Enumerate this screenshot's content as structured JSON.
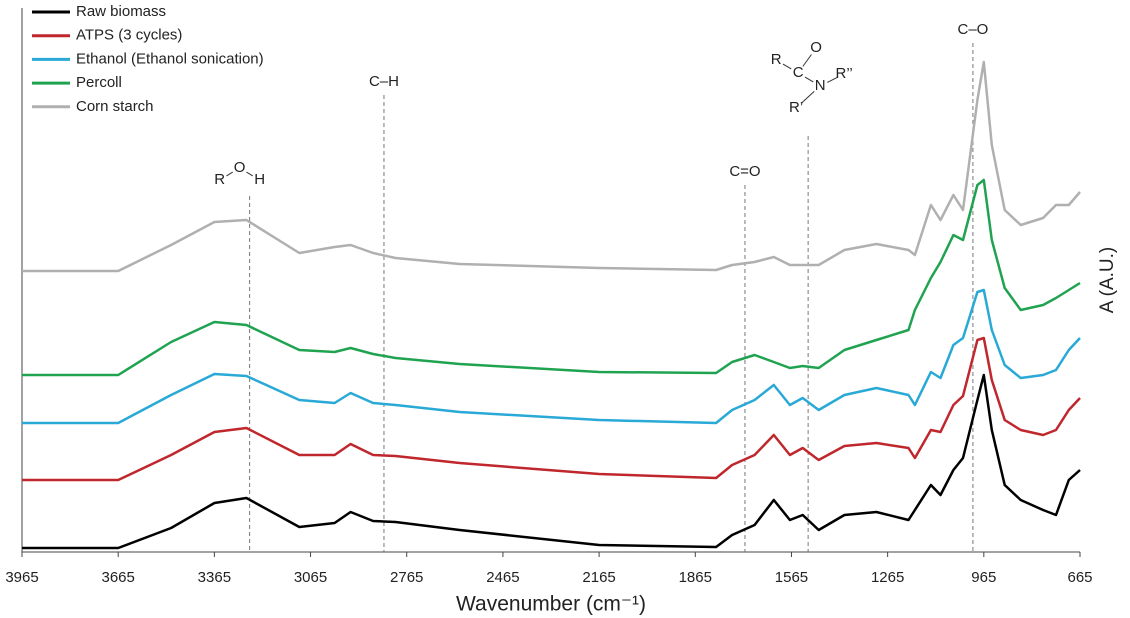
{
  "chart_data": {
    "type": "line",
    "x_label": "Wavenumber (cm⁻¹)",
    "y_label": "A (A.U.)",
    "xlim": [
      3965,
      665
    ],
    "ylim": [
      0,
      544
    ],
    "xticks": [
      3965,
      3665,
      3365,
      3065,
      2765,
      2465,
      2165,
      1865,
      1565,
      1265,
      965,
      665
    ],
    "legend": "upper left",
    "x": [
      3965,
      3665,
      3500,
      3365,
      3265,
      3100,
      2990,
      2940,
      2870,
      2800,
      2600,
      2165,
      1800,
      1750,
      1680,
      1620,
      1570,
      1530,
      1480,
      1400,
      1300,
      1200,
      1180,
      1130,
      1100,
      1060,
      1030,
      985,
      965,
      940,
      900,
      850,
      780,
      740,
      700,
      665
    ],
    "series": [
      {
        "name": "Raw biomass",
        "color": "#000000",
        "values": [
          4,
          4,
          24,
          49,
          54,
          25,
          29,
          40,
          31,
          30,
          22,
          7,
          5,
          17,
          27,
          52,
          32,
          37,
          22,
          37,
          40,
          32,
          42,
          67,
          57,
          82,
          94,
          152,
          177,
          122,
          67,
          52,
          42,
          37,
          72,
          82
        ]
      },
      {
        "name": "ATPS (3 cycles)",
        "color": "#c0272d",
        "values": [
          72,
          72,
          97,
          120,
          124,
          97,
          97,
          108,
          97,
          96,
          89,
          78,
          74,
          87,
          97,
          117,
          97,
          104,
          92,
          106,
          109,
          104,
          94,
          122,
          120,
          147,
          156,
          212,
          214,
          172,
          132,
          122,
          117,
          122,
          142,
          154
        ]
      },
      {
        "name": "Ethanol (Ethanol sonication)",
        "color": "#29a9d6",
        "values": [
          129,
          129,
          157,
          178,
          176,
          152,
          149,
          159,
          149,
          147,
          140,
          132,
          129,
          142,
          152,
          167,
          147,
          154,
          142,
          157,
          164,
          157,
          147,
          180,
          174,
          207,
          214,
          260,
          262,
          222,
          187,
          174,
          177,
          182,
          202,
          214
        ]
      },
      {
        "name": "Percoll",
        "color": "#20a350",
        "values": [
          177,
          177,
          210,
          230,
          227,
          202,
          200,
          204,
          198,
          194,
          188,
          180,
          179,
          190,
          197,
          190,
          184,
          186,
          184,
          202,
          212,
          222,
          242,
          274,
          290,
          317,
          312,
          367,
          372,
          312,
          264,
          242,
          247,
          254,
          262,
          269
        ]
      },
      {
        "name": "Corn starch",
        "color": "#b0b0b0",
        "values": [
          281,
          281,
          307,
          330,
          332,
          299,
          305,
          307,
          299,
          294,
          288,
          284,
          282,
          287,
          290,
          295,
          287,
          287,
          287,
          302,
          308,
          302,
          297,
          347,
          332,
          357,
          342,
          452,
          490,
          407,
          342,
          327,
          334,
          347,
          347,
          360
        ]
      }
    ],
    "annotations": [
      {
        "x": 3255,
        "atoms": [
          "R",
          "O",
          "H"
        ]
      },
      {
        "x": 2836,
        "label": "C–H"
      },
      {
        "x": 1710,
        "label": "C=O"
      },
      {
        "x": 1513,
        "atoms": [
          "R",
          "C",
          "O",
          "N",
          "R’",
          "R’’"
        ]
      },
      {
        "x": 999,
        "label": "C–O"
      }
    ]
  }
}
